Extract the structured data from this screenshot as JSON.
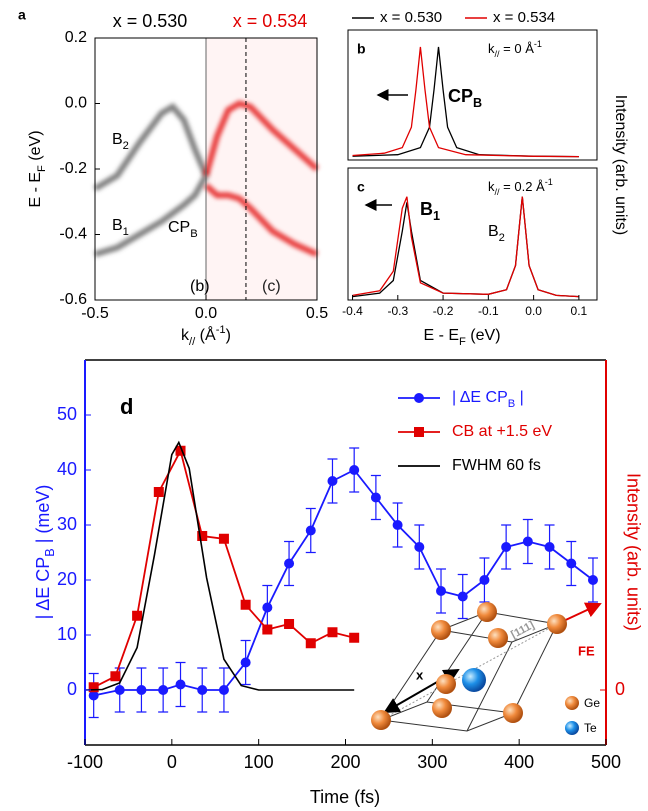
{
  "chart_data": [
    {
      "type": "band-map",
      "panel_label": "a",
      "title_left": "x = 0.530",
      "title_right": "x = 0.534",
      "xlabel": [
        {
          "text": "k"
        },
        {
          "sub": "//"
        },
        {
          "text": " (Å"
        },
        {
          "sup": "-1"
        },
        {
          "text": ")"
        }
      ],
      "ylabel": [
        {
          "text": "E - E"
        },
        {
          "sub": "F"
        },
        {
          "text": " (eV)"
        }
      ],
      "xlim": [
        -0.5,
        0.5
      ],
      "ylim": [
        -0.6,
        0.2
      ],
      "xticks": [
        -0.5,
        {
          "value": 0,
          "label": "0.0"
        },
        0.5
      ],
      "yticks": [
        0.2,
        {
          "value": 0,
          "label": "0.0"
        },
        -0.2,
        -0.4,
        -0.6
      ],
      "cuts": [
        0,
        0.18
      ],
      "bands": [
        {
          "color": "#555555",
          "x": [
            -0.5,
            -0.4,
            -0.3,
            -0.2,
            -0.15,
            -0.1,
            -0.05,
            0
          ],
          "values": [
            -0.26,
            -0.22,
            -0.12,
            -0.03,
            -0.01,
            -0.05,
            -0.14,
            -0.22
          ]
        },
        {
          "color": "#555555",
          "x": [
            -0.5,
            -0.4,
            -0.3,
            -0.2,
            -0.1,
            -0.05,
            0
          ],
          "values": [
            -0.46,
            -0.44,
            -0.4,
            -0.36,
            -0.31,
            -0.28,
            -0.22
          ]
        },
        {
          "color": "#e00000",
          "x": [
            0,
            0.05,
            0.1,
            0.15,
            0.2,
            0.3,
            0.4,
            0.5
          ],
          "values": [
            -0.22,
            -0.1,
            -0.02,
            0,
            -0.01,
            -0.08,
            -0.14,
            -0.2
          ]
        },
        {
          "color": "#e00000",
          "x": [
            0,
            0.05,
            0.1,
            0.15,
            0.2,
            0.3,
            0.4,
            0.5
          ],
          "values": [
            -0.25,
            -0.28,
            -0.28,
            -0.29,
            -0.32,
            -0.39,
            -0.43,
            -0.46
          ]
        }
      ],
      "annotations": [
        [
          {
            "text": "B"
          },
          {
            "sub": "2"
          }
        ],
        [
          {
            "text": "B"
          },
          {
            "sub": "1"
          }
        ],
        [
          {
            "text": "CP"
          },
          {
            "sub": "B"
          }
        ],
        "(b)",
        "(c)"
      ]
    },
    {
      "type": "spectrum",
      "panel_label": "b",
      "ylabel": "Intensity (arb. units)",
      "xlim": [
        -0.41,
        0.14
      ],
      "ylim": [
        0,
        1.15
      ],
      "kvalue": [
        {
          "text": "k"
        },
        {
          "sub": "//"
        },
        {
          "text": " = 0 Å"
        },
        {
          "sup": "-1"
        }
      ],
      "annotations": [
        [
          {
            "text": "CP"
          },
          {
            "sub": "B"
          }
        ]
      ],
      "series": [
        {
          "name": "x = 0.530",
          "color": "#000000",
          "x": [
            -0.4,
            -0.3,
            -0.25,
            -0.23,
            -0.22,
            -0.21,
            -0.2,
            -0.19,
            -0.17,
            -0.12,
            0,
            0.1
          ],
          "values": [
            0.034,
            0.047,
            0.11,
            0.29,
            0.62,
            1.0,
            0.62,
            0.29,
            0.11,
            0.047,
            0.034,
            0.03
          ]
        },
        {
          "name": "x = 0.534",
          "color": "#e00000",
          "x": [
            -0.4,
            -0.33,
            -0.29,
            -0.27,
            -0.26,
            -0.25,
            -0.24,
            -0.23,
            -0.21,
            -0.15,
            0,
            0.1
          ],
          "values": [
            0.04,
            0.06,
            0.11,
            0.29,
            0.62,
            1.0,
            0.62,
            0.29,
            0.11,
            0.047,
            0.033,
            0.03
          ]
        }
      ]
    },
    {
      "type": "spectrum",
      "panel_label": "c",
      "xlabel": [
        {
          "text": "E - E"
        },
        {
          "sub": "F"
        },
        {
          "text": " (eV)"
        }
      ],
      "xlim": [
        -0.41,
        0.14
      ],
      "ylim": [
        0,
        1.15
      ],
      "xticks": [
        -0.4,
        -0.3,
        -0.2,
        -0.1,
        {
          "value": 0,
          "label": "0.0"
        },
        0.1
      ],
      "kvalue": [
        {
          "text": "k"
        },
        {
          "sub": "//"
        },
        {
          "text": " = 0.2 Å"
        },
        {
          "sup": "-1"
        }
      ],
      "annotations": [
        [
          {
            "text": "B"
          },
          {
            "sub": "1"
          }
        ],
        [
          {
            "text": "B"
          },
          {
            "sub": "2"
          }
        ]
      ],
      "series": [
        {
          "color": "#000000",
          "x": [
            -0.4,
            -0.34,
            -0.31,
            -0.29,
            -0.28,
            -0.27,
            -0.25,
            -0.2,
            -0.1,
            -0.06,
            -0.04,
            -0.03,
            -0.025,
            -0.02,
            -0.01,
            0.01,
            0.05,
            0.1
          ],
          "values": [
            0.03,
            0.06,
            0.17,
            0.6,
            0.85,
            0.6,
            0.17,
            0.06,
            0.05,
            0.09,
            0.3,
            0.7,
            0.9,
            0.7,
            0.3,
            0.09,
            0.04,
            0.03
          ]
        },
        {
          "color": "#e00000",
          "x": [
            -0.4,
            -0.34,
            -0.31,
            -0.29,
            -0.28,
            -0.27,
            -0.25,
            -0.2,
            -0.1,
            -0.06,
            -0.04,
            -0.03,
            -0.025,
            -0.02,
            -0.01,
            0.01,
            0.05,
            0.1
          ],
          "values": [
            0.04,
            0.08,
            0.25,
            0.8,
            0.9,
            0.55,
            0.15,
            0.06,
            0.05,
            0.09,
            0.3,
            0.7,
            0.9,
            0.7,
            0.3,
            0.09,
            0.04,
            0.03
          ]
        }
      ]
    },
    {
      "type": "line",
      "panel_label": "d",
      "xlabel": "Time (fs)",
      "ylabel": [
        {
          "text": "| ΔE CP"
        },
        {
          "sub": "B"
        },
        {
          "text": " | (meV)"
        }
      ],
      "y2label": "Intensity (arb. units)",
      "xlim": [
        -100,
        500
      ],
      "ylim": [
        -10,
        60
      ],
      "y2lim": [
        -10,
        60
      ],
      "xticks": [
        -100,
        0,
        100,
        200,
        300,
        400,
        500
      ],
      "yticks": [
        0,
        10,
        20,
        30,
        40,
        50
      ],
      "y2ticks": [
        0
      ],
      "series": [
        {
          "name": [
            {
              "text": "| ΔE CP"
            },
            {
              "sub": "B"
            },
            {
              "text": " |"
            }
          ],
          "color": "#1a1aff",
          "marker": "circle",
          "x": [
            -90,
            -60,
            -35,
            -10,
            10,
            35,
            60,
            85,
            110,
            135,
            160,
            185,
            210,
            235,
            260,
            285,
            310,
            335,
            360,
            385,
            410,
            435,
            460,
            485
          ],
          "values": [
            -1,
            0,
            0,
            0,
            1,
            0,
            0,
            5,
            15,
            23,
            29,
            38,
            40,
            35,
            30,
            26,
            18,
            17,
            20,
            26,
            27,
            26,
            23,
            20
          ],
          "errors": [
            4,
            4,
            4,
            4,
            4,
            4,
            4,
            4,
            4,
            4,
            4,
            4,
            4,
            4,
            4,
            4,
            4,
            4,
            4,
            4,
            4,
            4,
            4,
            4
          ]
        },
        {
          "name": "CB at +1.5 eV",
          "color": "#e00000",
          "marker": "square",
          "axis": "y2",
          "x": [
            -90,
            -65,
            -40,
            -15,
            10,
            35,
            60,
            85,
            110,
            135,
            160,
            185,
            210
          ],
          "values": [
            0.5,
            2.5,
            13.5,
            36,
            43.5,
            28,
            27.5,
            15.5,
            11,
            12,
            8.5,
            10.5,
            9.5
          ]
        },
        {
          "name": "FWHM 60 fs",
          "color": "#000000",
          "marker": "none",
          "x": [
            -100,
            -80,
            -60,
            -40,
            -20,
            0,
            8,
            20,
            40,
            60,
            80,
            100,
            150,
            210
          ],
          "values": [
            0,
            0.1,
            1.3,
            7.7,
            24.6,
            42.8,
            45,
            40.3,
            20.4,
            5.6,
            0.8,
            0,
            0,
            0
          ]
        }
      ]
    }
  ],
  "inset": {
    "x": "x",
    "direction": "[111]",
    "fe": "FE",
    "ge": "Ge",
    "te": "Te"
  }
}
